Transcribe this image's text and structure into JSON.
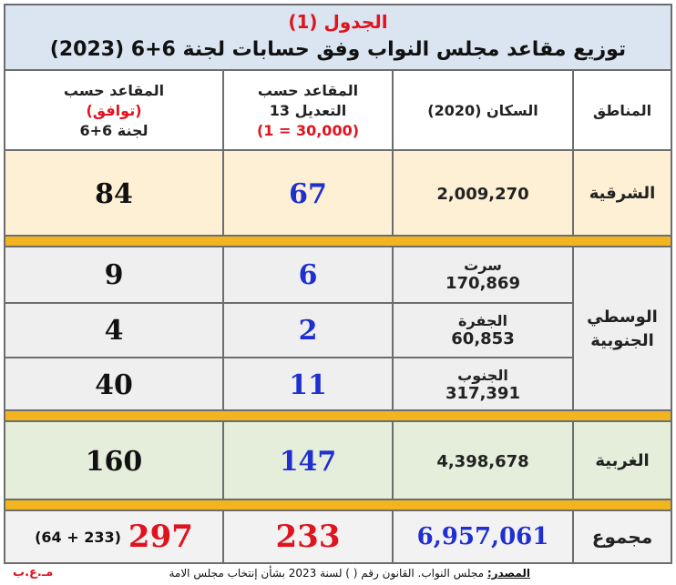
{
  "table": {
    "number": "الجدول (1)",
    "title": "توزيع مقاعد مجلس النواب وفق حسابات لجنة 6+6 (2023)"
  },
  "headers": {
    "regions": "المناطق",
    "population": "السكان (2020)",
    "amendment_line1": "المقاعد حسب",
    "amendment_line2": "التعديل 13",
    "amendment_line3": "(1 = 30,000)",
    "consensus_line1": "المقاعد حسب",
    "consensus_line2": "(توافق)",
    "consensus_line3": "لجنة 6+6"
  },
  "rows": {
    "east": {
      "region": "الشرقية",
      "population": "2,009,270",
      "seats_amendment": "67",
      "seats_committee": "84"
    },
    "south": {
      "region_line1": "الوسطي",
      "region_line2": "الجنوبية",
      "items": [
        {
          "name": "سرت",
          "population": "170,869",
          "seats_amendment": "6",
          "seats_committee": "9"
        },
        {
          "name": "الجفرة",
          "population": "60,853",
          "seats_amendment": "2",
          "seats_committee": "4"
        },
        {
          "name": "الجنوب",
          "population": "317,391",
          "seats_amendment": "11",
          "seats_committee": "40"
        }
      ]
    },
    "west": {
      "region": "الغربية",
      "population": "4,398,678",
      "seats_amendment": "147",
      "seats_committee": "160"
    }
  },
  "total": {
    "label": "مجموع",
    "population": "6,957,061",
    "seats_amendment": "233",
    "seats_committee": "297",
    "committee_breakdown": "(64 + 233)"
  },
  "footer": {
    "source_label": "المصدر:",
    "source_text": " مجلس النواب. القانون رقم (  ) لسنة 2023 بشأن إنتخاب مجلس الامة",
    "signature": "مـ.ع.ب"
  },
  "colors": {
    "title_bg": "#dae5f1",
    "east_bg": "#fdf0d5",
    "south_bg": "#efefef",
    "west_bg": "#e4eedb",
    "total_bg": "#f2f2f2",
    "band": "#f2b51f",
    "red": "#e0131e",
    "blue": "#1f2fd0"
  }
}
